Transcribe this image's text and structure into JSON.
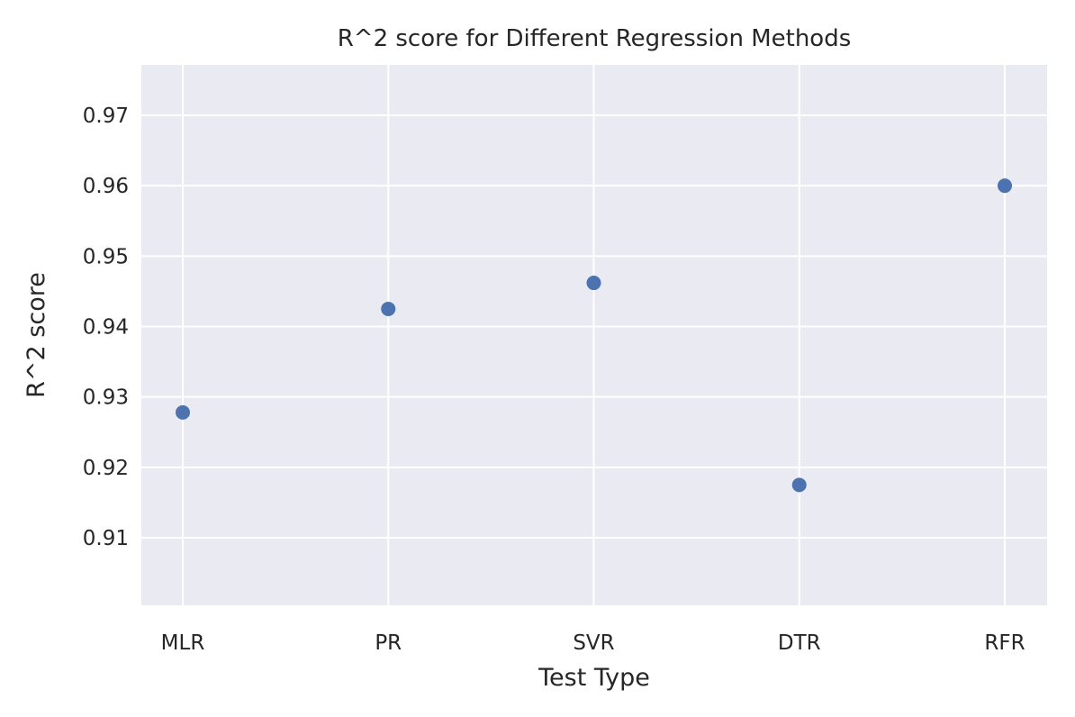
{
  "chart_data": {
    "type": "scatter",
    "title": "R^2 score for Different Regression Methods",
    "xlabel": "Test Type",
    "ylabel": "R^2 score",
    "categories": [
      "MLR",
      "PR",
      "SVR",
      "DTR",
      "RFR"
    ],
    "values": [
      0.9278,
      0.9425,
      0.9462,
      0.9175,
      0.96
    ],
    "ylim": [
      0.9,
      0.977
    ],
    "yticks": [
      0.91,
      0.92,
      0.93,
      0.94,
      0.95,
      0.96,
      0.97
    ],
    "ytick_labels": [
      "0.91",
      "0.92",
      "0.93",
      "0.94",
      "0.95",
      "0.96",
      "0.97"
    ],
    "grid": true,
    "colors": {
      "background": "#eaeaf2",
      "grid": "#ffffff",
      "marker": "#4c72b0",
      "text": "#262626"
    }
  }
}
